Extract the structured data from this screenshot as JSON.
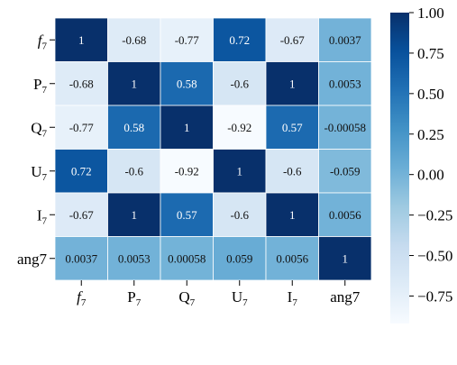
{
  "chart_data": {
    "type": "heatmap",
    "title": "",
    "xlabel": "",
    "ylabel": "",
    "rows": [
      {
        "base": "f",
        "sub": "7",
        "italic": true
      },
      {
        "base": "P",
        "sub": "7",
        "italic": false
      },
      {
        "base": "Q",
        "sub": "7",
        "italic": false
      },
      {
        "base": "U",
        "sub": "7",
        "italic": false
      },
      {
        "base": "I",
        "sub": "7",
        "italic": false
      },
      {
        "base": "ang7",
        "sub": "",
        "italic": false
      }
    ],
    "columns": [
      {
        "base": "f",
        "sub": "7",
        "italic": true
      },
      {
        "base": "P",
        "sub": "7",
        "italic": false
      },
      {
        "base": "Q",
        "sub": "7",
        "italic": false
      },
      {
        "base": "U",
        "sub": "7",
        "italic": false
      },
      {
        "base": "I",
        "sub": "7",
        "italic": false
      },
      {
        "base": "ang7",
        "sub": "",
        "italic": false
      }
    ],
    "values": [
      [
        1,
        -0.68,
        -0.77,
        0.72,
        -0.67,
        0.0037
      ],
      [
        -0.68,
        1,
        0.58,
        -0.6,
        1,
        0.0053
      ],
      [
        -0.77,
        0.58,
        1,
        -0.92,
        0.57,
        -0.00058
      ],
      [
        0.72,
        -0.6,
        -0.92,
        1,
        -0.6,
        -0.059
      ],
      [
        -0.67,
        1,
        0.57,
        -0.6,
        1,
        0.0056
      ],
      [
        0.0037,
        0.0053,
        0.00058,
        0.059,
        0.0056,
        1
      ]
    ],
    "annotations": [
      [
        "1",
        "-0.68",
        "-0.77",
        "0.72",
        "-0.67",
        "0.0037"
      ],
      [
        "-0.68",
        "1",
        "0.58",
        "-0.6",
        "1",
        "0.0053"
      ],
      [
        "-0.77",
        "0.58",
        "1",
        "-0.92",
        "0.57",
        "-0.00058"
      ],
      [
        "0.72",
        "-0.6",
        "-0.92",
        "1",
        "-0.6",
        "-0.059"
      ],
      [
        "-0.67",
        "1",
        "0.57",
        "-0.6",
        "1",
        "0.0056"
      ],
      [
        "0.0037",
        "0.0053",
        "0.00058",
        "0.059",
        "0.0056",
        "1"
      ]
    ],
    "colormap": "Blues",
    "colorbar": {
      "range": [
        -0.92,
        1.0
      ],
      "ticks": [
        1.0,
        0.75,
        0.5,
        0.25,
        0.0,
        -0.25,
        -0.5,
        -0.75
      ],
      "tick_labels": [
        "1.00",
        "0.75",
        "0.50",
        "0.25",
        "0.00",
        "−0.25",
        "−0.50",
        "−0.75"
      ]
    },
    "grid": false
  }
}
